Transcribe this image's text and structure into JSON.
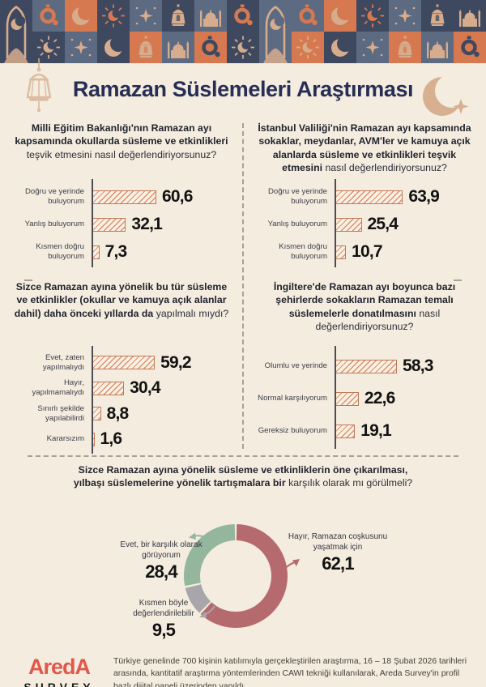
{
  "header": {
    "title": "Ramazan Süslemeleri Araştırması"
  },
  "icons": {
    "left_of_title": "lantern-icon",
    "right_of_title": "crescent-star-icon",
    "border_motifs": [
      "arch-with-crescent",
      "crescent-moon",
      "four-point-star",
      "sunburst-crescent",
      "lantern",
      "mosque-silhouette",
      "hanging-ornament"
    ]
  },
  "colors": {
    "background": "#f4ecdf",
    "title_navy": "#272e55",
    "tile_navy": "#3e4960",
    "tile_slate": "#5c6a82",
    "tile_orange": "#d77950",
    "tile_tan": "#d6ac8d",
    "bar_accent": "#c3785a",
    "donut_red": "#b56a6e",
    "donut_green": "#93b69c",
    "donut_gray": "#a6a6ab",
    "logo_red": "#e2574c"
  },
  "chart_data": [
    {
      "type": "bar",
      "orientation": "horizontal",
      "unit": "percent",
      "title_bold": "Milli Eğitim Bakanlığı'nın Ramazan ayı kapsamında okullarda süsleme ve etkinlikleri",
      "title_tail": "teşvik etmesini nasıl değerlendiriyorsunuz?",
      "categories": [
        "Doğru ve yerinde buluyorum",
        "Yanlış buluyorum",
        "Kısmen doğru buluyorum"
      ],
      "values": [
        60.6,
        32.1,
        7.3
      ],
      "values_display": [
        "60,6",
        "32,1",
        "7,3"
      ]
    },
    {
      "type": "bar",
      "orientation": "horizontal",
      "unit": "percent",
      "title_bold": "İstanbul Valiliği'nin Ramazan ayı kapsamında sokaklar, meydanlar, AVM'ler ve kamuya açık alanlarda süsleme ve etkinlikleri teşvik etmesini",
      "title_tail": "nasıl değerlendiriyorsunuz?",
      "categories": [
        "Doğru ve yerinde buluyorum",
        "Yanlış buluyorum",
        "Kısmen doğru buluyorum"
      ],
      "values": [
        63.9,
        25.4,
        10.7
      ],
      "values_display": [
        "63,9",
        "25,4",
        "10,7"
      ]
    },
    {
      "type": "bar",
      "orientation": "horizontal",
      "unit": "percent",
      "title_bold": "Sizce Ramazan ayına yönelik bu tür süsleme ve etkinlikler (okullar ve kamuya açık alanlar dahil) daha önceki yıllarda da",
      "title_tail": "yapılmalı mıydı?",
      "categories": [
        "Evet, zaten yapılmalıydı",
        "Hayır, yapılmamalıydı",
        "Sınırlı şekilde yapılabilirdi",
        "Kararsızım"
      ],
      "values": [
        59.2,
        30.4,
        8.8,
        1.6
      ],
      "values_display": [
        "59,2",
        "30,4",
        "8,8",
        "1,6"
      ]
    },
    {
      "type": "bar",
      "orientation": "horizontal",
      "unit": "percent",
      "title_bold": "İngiltere'de Ramazan ayı boyunca bazı şehirlerde sokakların Ramazan temalı süslemelerle donatılmasını",
      "title_tail": "nasıl değerlendiriyorsunuz?",
      "categories": [
        "Olumlu ve yerinde",
        "Normal karşılıyorum",
        "Gereksiz buluyorum"
      ],
      "values": [
        58.3,
        22.6,
        19.1
      ],
      "values_display": [
        "58,3",
        "22,6",
        "19,1"
      ]
    },
    {
      "type": "donut",
      "unit": "percent",
      "title_bold": "Sizce Ramazan ayına yönelik süsleme ve etkinliklerin öne çıkarılması, yılbaşı süslemelerine yönelik tartışmalara bir",
      "title_tail": "karşılık olarak mı görülmeli?",
      "segments": [
        {
          "label": "Hayır, Ramazan coşkusunu yaşatmak için",
          "value": 62.1,
          "display": "62,1",
          "color": "#b56a6e"
        },
        {
          "label": "Kısmen böyle değerlendirilebilir",
          "value": 9.5,
          "display": "9,5",
          "color": "#a6a6ab"
        },
        {
          "label": "Evet, bir karşılık olarak görüyorum",
          "value": 28.4,
          "display": "28,4",
          "color": "#93b69c"
        }
      ]
    }
  ],
  "footer": {
    "logo_top": "AredA",
    "logo_bottom": "SURVEY",
    "methodology": "Türkiye genelinde 700 kişinin katılımıyla gerçekleştirilen araştırma, 16 – 18 Şubat 2026 tarihleri arasında, kantitatif araştırma yöntemlerinden CAWI tekniği kullanılarak, Areda Survey'in profil bazlı dijital paneli üzerinden yapıldı."
  }
}
